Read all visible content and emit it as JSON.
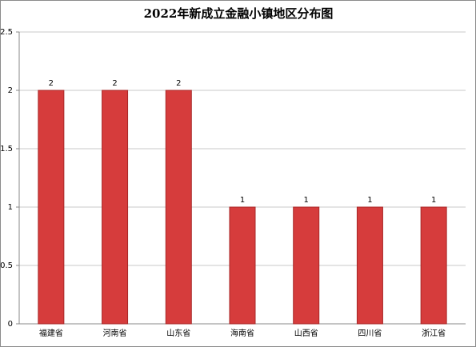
{
  "chart_data": {
    "type": "bar",
    "title": "2022年新成立金融小镇地区分布图",
    "categories": [
      "福建省",
      "河南省",
      "山东省",
      "海南省",
      "山西省",
      "四川省",
      "浙江省"
    ],
    "values": [
      2,
      2,
      2,
      1,
      1,
      1,
      1
    ],
    "color": "#d63c3c",
    "ylim": [
      0,
      2.5
    ],
    "yticks": [
      0,
      0.5,
      1,
      1.5,
      2,
      2.5
    ],
    "grid": true
  }
}
